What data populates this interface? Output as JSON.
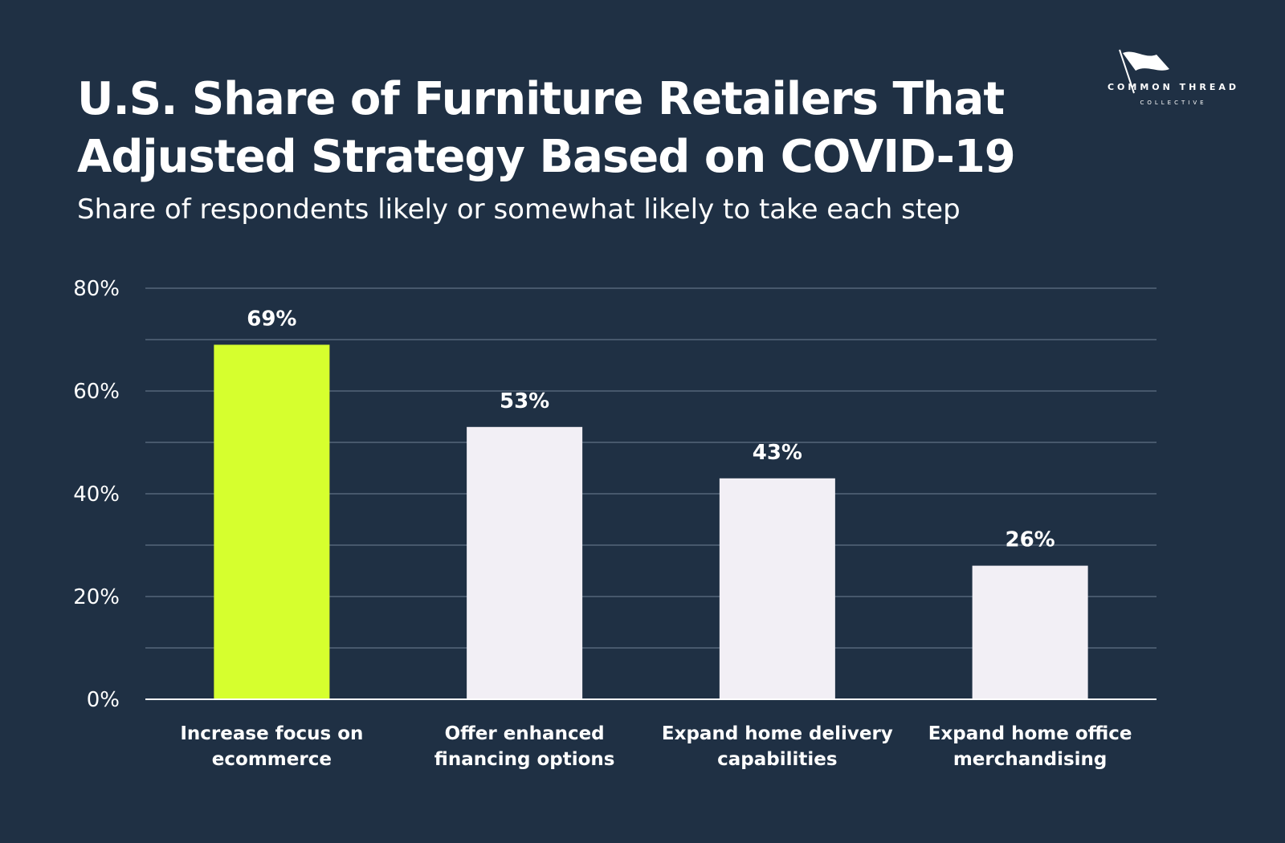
{
  "header": {
    "title": "U.S. Share of Furniture Retailers That Adjusted Strategy Based on COVID-19",
    "subtitle": "Share of respondents likely or somewhat likely to take each step"
  },
  "brand": {
    "line1": "COMMON THREAD",
    "line2": "COLLECTIVE",
    "icon": "flag-icon"
  },
  "colors": {
    "background": "#1f3044",
    "highlight": "#d6ff2e",
    "bar": "#f2eff5",
    "grid": "#55667a",
    "text": "#ffffff"
  },
  "chart_data": {
    "type": "bar",
    "title": "U.S. Share of Furniture Retailers That Adjusted Strategy Based on COVID-19",
    "subtitle": "Share of respondents likely or somewhat likely to take each step",
    "categories": [
      [
        "Increase focus on",
        "ecommerce"
      ],
      [
        "Offer enhanced",
        "financing options"
      ],
      [
        "Expand home delivery",
        "capabilities"
      ],
      [
        "Expand home office",
        "merchandising"
      ]
    ],
    "values": [
      69,
      53,
      43,
      26
    ],
    "value_labels": [
      "69%",
      "53%",
      "43%",
      "26%"
    ],
    "highlight_index": 0,
    "ylim": [
      0,
      80
    ],
    "yticks": [
      0,
      20,
      40,
      60,
      80
    ],
    "ytick_labels": [
      "0%",
      "20%",
      "40%",
      "60%",
      "80%"
    ],
    "minor_gridlines": [
      10,
      30,
      50,
      70
    ],
    "xlabel": "",
    "ylabel": "",
    "grid": true,
    "legend": "none"
  }
}
